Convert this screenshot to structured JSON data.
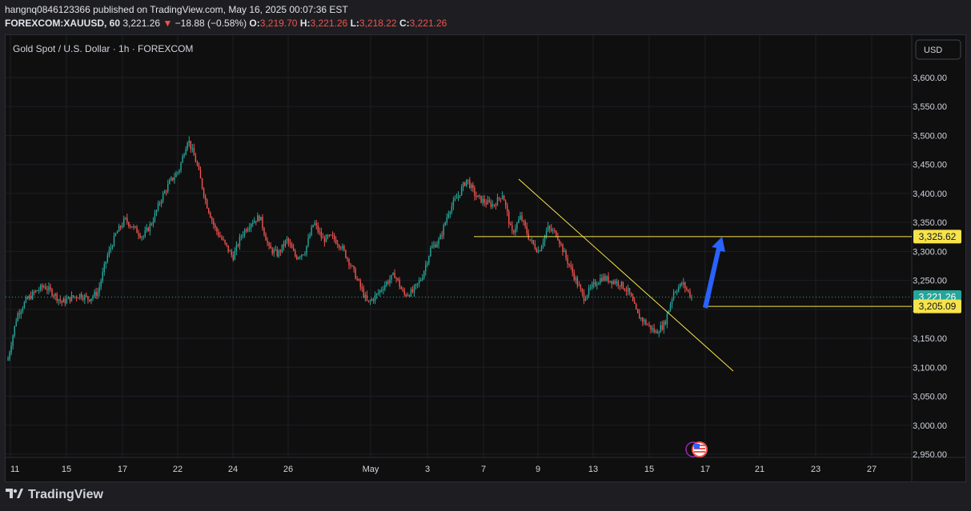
{
  "header": {
    "publisher_line": "hangnq0846123366 published on TradingView.com, May 16, 2025 00:07:36 EST",
    "symbol": "FOREXCOM:XAUUSD, 60",
    "last": "3,221.26",
    "change": "−18.88 (−0.58%)",
    "o_label": "O:",
    "o_value": "3,219.70",
    "h_label": "H:",
    "h_value": "3,221.26",
    "l_label": "L:",
    "l_value": "3,218.22",
    "c_label": "C:",
    "c_value": "3,221.26"
  },
  "legend_title": "Gold Spot / U.S. Dollar · 1h · FOREXCOM",
  "currency_button": "USD",
  "brand": "TradingView",
  "colors": {
    "up": "#26a69a",
    "down": "#ef5350",
    "line": "#f7e34b",
    "arrow": "#2962ff",
    "bg": "#0f0f0f"
  },
  "chart_data": {
    "type": "candlestick",
    "y_ticks": [
      "3,600.00",
      "3,550.00",
      "3,500.00",
      "3,450.00",
      "3,400.00",
      "3,350.00",
      "3,300.00",
      "3,250.00",
      "3,200.00",
      "3,150.00",
      "3,100.00",
      "3,050.00",
      "3,000.00",
      "2,950.00"
    ],
    "x_ticks": [
      "11",
      "15",
      "17",
      "22",
      "24",
      "26",
      "May",
      "3",
      "7",
      "9",
      "13",
      "15",
      "17",
      "21",
      "23",
      "27"
    ],
    "ylim": [
      2930,
      3640
    ],
    "price_labels": {
      "resistance": "3,325.62",
      "last": "3,221.26",
      "support": "3,205.09"
    },
    "levels": {
      "resistance": 3325.62,
      "last": 3221.26,
      "support": 3205.09
    },
    "price_path": [
      3115,
      3190,
      3215,
      3230,
      3240,
      3228,
      3212,
      3220,
      3225,
      3218,
      3230,
      3290,
      3330,
      3355,
      3340,
      3325,
      3350,
      3390,
      3420,
      3440,
      3495,
      3450,
      3385,
      3340,
      3315,
      3290,
      3330,
      3350,
      3360,
      3305,
      3295,
      3320,
      3290,
      3300,
      3350,
      3320,
      3325,
      3310,
      3280,
      3245,
      3210,
      3225,
      3245,
      3260,
      3225,
      3230,
      3255,
      3305,
      3320,
      3370,
      3395,
      3425,
      3395,
      3385,
      3380,
      3400,
      3330,
      3360,
      3320,
      3300,
      3340,
      3330,
      3290,
      3255,
      3220,
      3240,
      3255,
      3250,
      3245,
      3230,
      3190,
      3175,
      3160,
      3175,
      3230,
      3245,
      3221
    ]
  },
  "icons": {
    "flag": "us-flag-icon",
    "event": "event-icon"
  }
}
